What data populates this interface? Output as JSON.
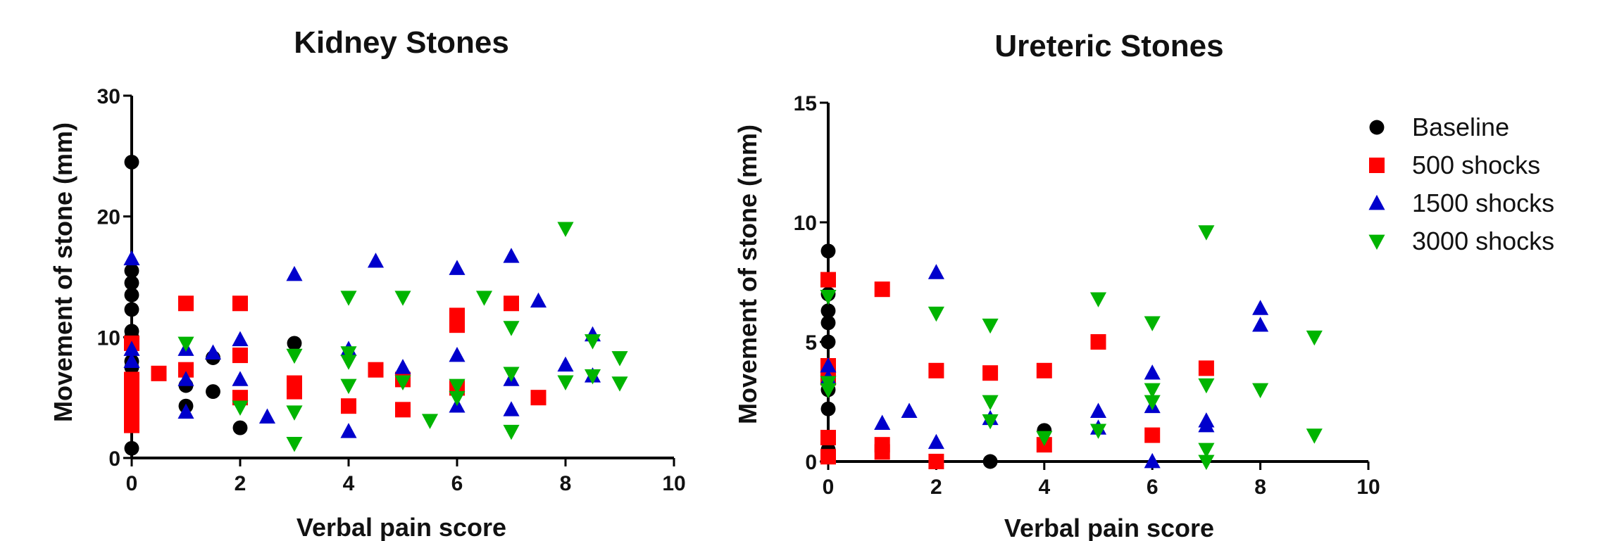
{
  "chart_data": [
    {
      "type": "scatter",
      "title": "Kidney Stones",
      "xlabel": "Verbal pain score",
      "ylabel": "Movement of stone (mm)",
      "xlim": [
        0,
        10
      ],
      "ylim": [
        0,
        30
      ],
      "xticks": [
        "0",
        "2",
        "4",
        "6",
        "8",
        "10"
      ],
      "yticks": [
        "0",
        "10",
        "20",
        "30"
      ],
      "grid": false,
      "series": [
        {
          "name": "Baseline",
          "points": [
            [
              0,
              24.5
            ],
            [
              0,
              15.5
            ],
            [
              0,
              14.5
            ],
            [
              0,
              13.5
            ],
            [
              0,
              12.3
            ],
            [
              0,
              10.5
            ],
            [
              0,
              10
            ],
            [
              0,
              8
            ],
            [
              0,
              7.5
            ],
            [
              0,
              0.8
            ],
            [
              1,
              6
            ],
            [
              1,
              4.3
            ],
            [
              1.5,
              8.3
            ],
            [
              1.5,
              5.5
            ],
            [
              2,
              2.5
            ],
            [
              3,
              9.5
            ]
          ]
        },
        {
          "name": "500 shocks",
          "points": [
            [
              0,
              9.5
            ],
            [
              0,
              6.5
            ],
            [
              0,
              5.5
            ],
            [
              0,
              4.8
            ],
            [
              0,
              4.2
            ],
            [
              0,
              3.5
            ],
            [
              0,
              2.7
            ],
            [
              0.5,
              7
            ],
            [
              1,
              12.8
            ],
            [
              1,
              7.3
            ],
            [
              2,
              12.8
            ],
            [
              2,
              8.5
            ],
            [
              2,
              5
            ],
            [
              3,
              6.2
            ],
            [
              3,
              5.5
            ],
            [
              4,
              4.3
            ],
            [
              4.5,
              7.3
            ],
            [
              5,
              6.5
            ],
            [
              5,
              4
            ],
            [
              6,
              11.8
            ],
            [
              6,
              11
            ],
            [
              6,
              5.8
            ],
            [
              7,
              12.8
            ],
            [
              7.5,
              5
            ]
          ]
        },
        {
          "name": "1500 shocks",
          "points": [
            [
              0,
              16.5
            ],
            [
              0,
              9
            ],
            [
              0,
              8
            ],
            [
              1,
              9
            ],
            [
              1,
              6.5
            ],
            [
              1,
              3.8
            ],
            [
              1.5,
              8.7
            ],
            [
              2,
              9.8
            ],
            [
              2,
              6.5
            ],
            [
              2.5,
              3.4
            ],
            [
              3,
              15.2
            ],
            [
              4,
              9
            ],
            [
              4,
              2.2
            ],
            [
              4.5,
              16.3
            ],
            [
              5,
              7.5
            ],
            [
              6,
              15.7
            ],
            [
              6,
              8.5
            ],
            [
              6,
              4.3
            ],
            [
              7,
              16.7
            ],
            [
              7,
              6.5
            ],
            [
              7,
              4
            ],
            [
              7.5,
              13
            ],
            [
              8,
              7.7
            ],
            [
              8.5,
              10.2
            ],
            [
              8.5,
              6.8
            ]
          ]
        },
        {
          "name": "3000 shocks",
          "points": [
            [
              1,
              9.5
            ],
            [
              2,
              4.2
            ],
            [
              3,
              8.5
            ],
            [
              3,
              3.8
            ],
            [
              3,
              1.2
            ],
            [
              4,
              13.3
            ],
            [
              4,
              8.7
            ],
            [
              4,
              8
            ],
            [
              4,
              6
            ],
            [
              5,
              13.3
            ],
            [
              5,
              6.3
            ],
            [
              5.5,
              3.1
            ],
            [
              6,
              6
            ],
            [
              6,
              5
            ],
            [
              6.5,
              13.3
            ],
            [
              7,
              10.8
            ],
            [
              7,
              7
            ],
            [
              7,
              2.2
            ],
            [
              8,
              19
            ],
            [
              8,
              6.3
            ],
            [
              8.5,
              9.7
            ],
            [
              8.5,
              6.8
            ],
            [
              9,
              8.3
            ],
            [
              9,
              6.2
            ]
          ]
        }
      ]
    },
    {
      "type": "scatter",
      "title": "Ureteric Stones",
      "xlabel": "Verbal pain score",
      "ylabel": "Movement of stone (mm)",
      "xlim": [
        0,
        10
      ],
      "ylim": [
        0,
        15
      ],
      "xticks": [
        "0",
        "2",
        "4",
        "6",
        "8",
        "10"
      ],
      "yticks": [
        "0",
        "5",
        "10",
        "15"
      ],
      "grid": false,
      "series": [
        {
          "name": "Baseline",
          "points": [
            [
              0,
              8.8
            ],
            [
              0,
              7
            ],
            [
              0,
              6.3
            ],
            [
              0,
              5.8
            ],
            [
              0,
              5
            ],
            [
              0,
              4
            ],
            [
              0,
              3.5
            ],
            [
              0,
              3
            ],
            [
              0,
              2.2
            ],
            [
              0,
              1
            ],
            [
              0,
              0.5
            ],
            [
              3,
              0
            ],
            [
              4,
              1.3
            ]
          ]
        },
        {
          "name": "500 shocks",
          "points": [
            [
              0,
              7.6
            ],
            [
              0,
              4
            ],
            [
              0,
              3.5
            ],
            [
              0,
              1
            ],
            [
              0,
              0.2
            ],
            [
              1,
              7.2
            ],
            [
              1,
              0.7
            ],
            [
              1,
              0.4
            ],
            [
              2,
              3.8
            ],
            [
              2,
              0
            ],
            [
              3,
              3.7
            ],
            [
              4,
              3.8
            ],
            [
              4,
              0.7
            ],
            [
              5,
              5
            ],
            [
              6,
              1.1
            ],
            [
              7,
              3.9
            ]
          ]
        },
        {
          "name": "1500 shocks",
          "points": [
            [
              0,
              4
            ],
            [
              0,
              3.5
            ],
            [
              1,
              1.6
            ],
            [
              1.5,
              2.1
            ],
            [
              2,
              7.9
            ],
            [
              2,
              0.8
            ],
            [
              3,
              1.8
            ],
            [
              5,
              2.1
            ],
            [
              5,
              1.4
            ],
            [
              6,
              3.7
            ],
            [
              6,
              2.3
            ],
            [
              6,
              0
            ],
            [
              7,
              1.7
            ],
            [
              7,
              1.5
            ],
            [
              8,
              6.4
            ],
            [
              8,
              5.7
            ]
          ]
        },
        {
          "name": "3000 shocks",
          "points": [
            [
              0,
              6.9
            ],
            [
              0,
              3.3
            ],
            [
              0,
              3
            ],
            [
              2,
              6.2
            ],
            [
              3,
              5.7
            ],
            [
              3,
              2.5
            ],
            [
              3,
              1.7
            ],
            [
              4,
              1
            ],
            [
              5,
              6.8
            ],
            [
              5,
              1.3
            ],
            [
              6,
              5.8
            ],
            [
              6,
              3
            ],
            [
              6,
              2.5
            ],
            [
              7,
              9.6
            ],
            [
              7,
              3.2
            ],
            [
              7,
              0.5
            ],
            [
              7,
              0
            ],
            [
              8,
              3
            ],
            [
              9,
              5.2
            ],
            [
              9,
              1.1
            ]
          ]
        }
      ]
    }
  ],
  "legend": {
    "placement": "right",
    "items": [
      {
        "label": "Baseline",
        "marker": "circle",
        "color": "#000000"
      },
      {
        "label": "500 shocks",
        "marker": "square",
        "color": "#ff0000"
      },
      {
        "label": "1500 shocks",
        "marker": "triangle-up",
        "color": "#0000cc"
      },
      {
        "label": "3000 shocks",
        "marker": "triangle-down",
        "color": "#00b400"
      }
    ]
  }
}
